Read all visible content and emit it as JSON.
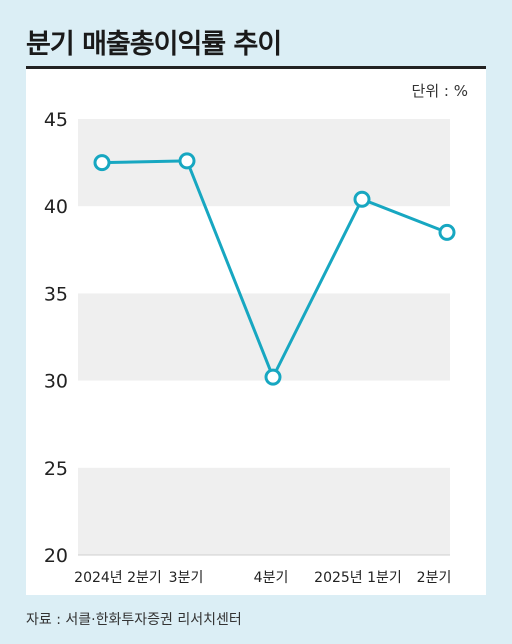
{
  "title": "분기 매출총이익률 추이",
  "unit": "단위 : %",
  "source": "자료 : 서클·한화투자증권 리서치센터",
  "chart_data": {
    "type": "line",
    "categories": [
      "2024년 2분기",
      "3분기",
      "4분기",
      "2025년 1분기",
      "2분기"
    ],
    "values": [
      42.5,
      42.6,
      30.2,
      40.4,
      38.5
    ],
    "ylim": [
      20,
      45
    ],
    "yticks": [
      45,
      40,
      35,
      30,
      25,
      20
    ],
    "grid": true,
    "colors": {
      "line": "#17a7c1",
      "band": "#efefef",
      "marker_fill": "#ffffff"
    }
  }
}
